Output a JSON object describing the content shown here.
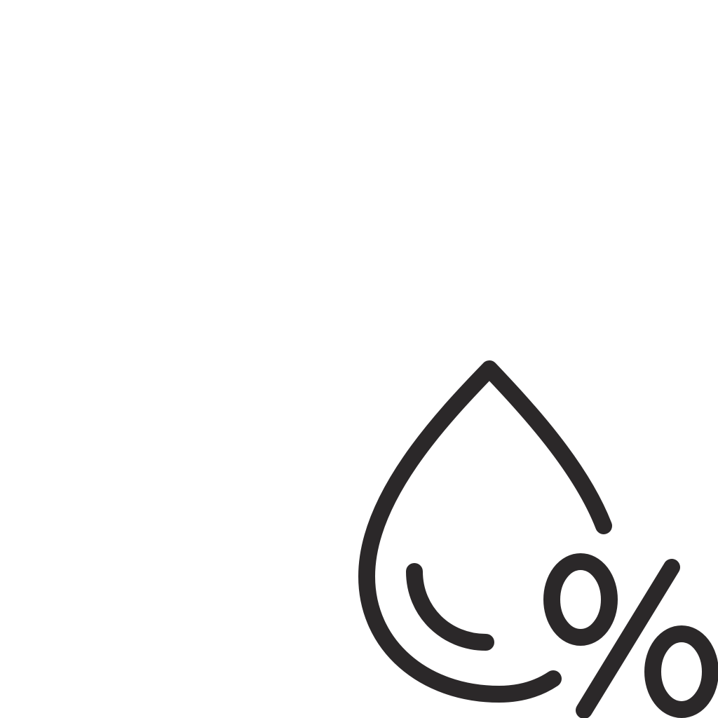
{
  "icon": {
    "name": "humidity-icon",
    "parts": [
      "water-drop",
      "drop-highlight",
      "percent-sign"
    ]
  },
  "colors": {
    "background": "#ffffff",
    "stroke": "#2b2829"
  }
}
